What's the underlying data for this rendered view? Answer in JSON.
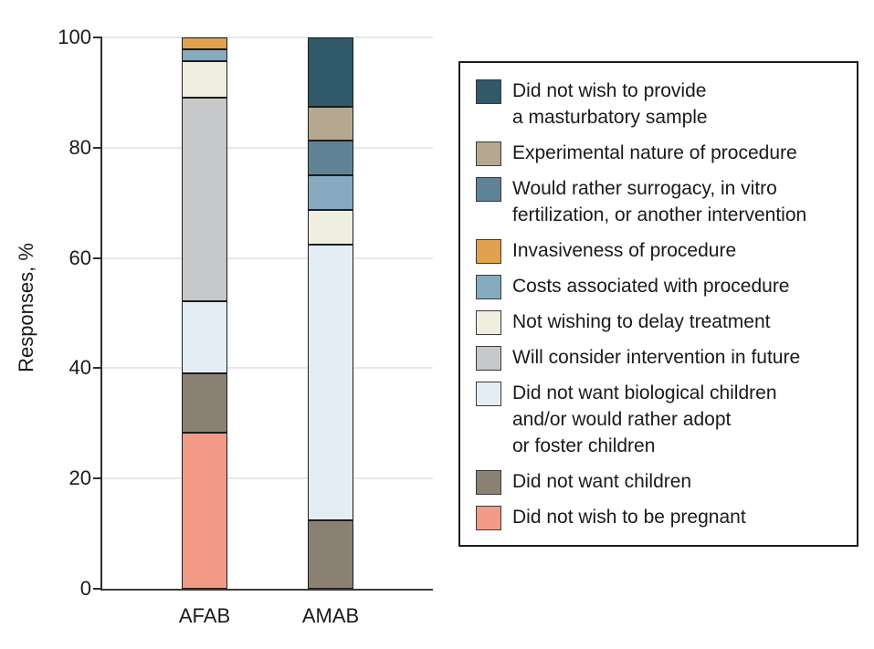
{
  "chart_data": {
    "type": "stacked-bar",
    "title": "",
    "xlabel": "",
    "ylabel": "Responses, %",
    "ylim": [
      0,
      100
    ],
    "y_ticks": [
      0,
      20,
      40,
      60,
      80,
      100
    ],
    "grid": true,
    "legend_position": "right",
    "categories": [
      "AFAB",
      "AMAB"
    ],
    "series": [
      {
        "name": "Did not wish to be pregnant",
        "color": "#f29b87",
        "values": [
          28.26,
          0
        ]
      },
      {
        "name": "Did not want children",
        "color": "#8b8173",
        "values": [
          10.87,
          12.5
        ]
      },
      {
        "name": "Did not want biological children and/or would rather adopt or foster children",
        "color": "#e4edf3",
        "values": [
          13.04,
          50.0
        ]
      },
      {
        "name": "Will consider intervention in future",
        "color": "#c7c8ca",
        "values": [
          36.96,
          0
        ]
      },
      {
        "name": "Not wishing to delay treatment",
        "color": "#efeee1",
        "values": [
          6.52,
          6.25
        ]
      },
      {
        "name": "Costs associated with procedure",
        "color": "#86aabf",
        "values": [
          2.17,
          6.25
        ]
      },
      {
        "name": "Invasiveness of procedure",
        "color": "#e1a14f",
        "values": [
          2.17,
          0
        ]
      },
      {
        "name": "Would rather surrogacy, in vitro fertilization, or another intervention",
        "color": "#5f8396",
        "values": [
          0,
          6.25
        ]
      },
      {
        "name": "Experimental nature of procedure",
        "color": "#b4a891",
        "values": [
          0,
          6.25
        ]
      },
      {
        "name": "Did not wish to provide a masturbatory sample",
        "color": "#30596a",
        "values": [
          0,
          12.5
        ]
      }
    ]
  },
  "legend": {
    "items": [
      {
        "color": "#30596a",
        "lines": [
          "Did not wish to provide",
          "a masturbatory sample"
        ]
      },
      {
        "color": "#b4a891",
        "lines": [
          "Experimental nature of procedure"
        ]
      },
      {
        "color": "#5f8396",
        "lines": [
          "Would rather surrogacy, in vitro",
          "fertilization, or another intervention"
        ]
      },
      {
        "color": "#e1a14f",
        "lines": [
          "Invasiveness of procedure"
        ]
      },
      {
        "color": "#86aabf",
        "lines": [
          "Costs associated with procedure"
        ]
      },
      {
        "color": "#efeee1",
        "lines": [
          "Not wishing to delay treatment"
        ]
      },
      {
        "color": "#c7c8ca",
        "lines": [
          "Will consider intervention in future"
        ]
      },
      {
        "color": "#e4edf3",
        "lines": [
          "Did not want biological children",
          "and/or would rather adopt",
          "or foster children"
        ]
      },
      {
        "color": "#8b8173",
        "lines": [
          "Did not want children"
        ]
      },
      {
        "color": "#f29b87",
        "lines": [
          "Did not wish to be pregnant"
        ]
      }
    ]
  }
}
